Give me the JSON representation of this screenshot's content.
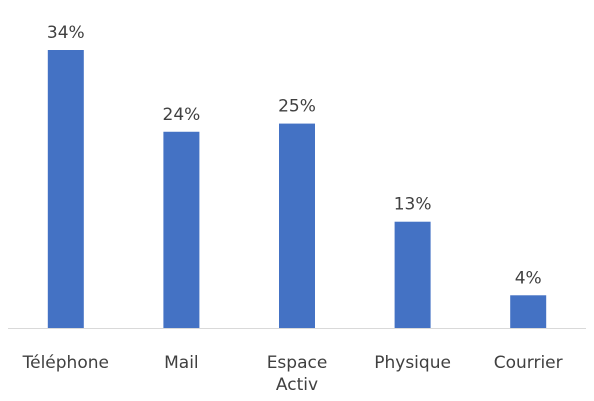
{
  "chart_data": {
    "type": "bar",
    "categories": [
      [
        "Téléphone"
      ],
      [
        "Mail"
      ],
      [
        "Espace",
        "Activ"
      ],
      [
        "Physique"
      ],
      [
        "Courrier"
      ]
    ],
    "values": [
      34,
      24,
      25,
      13,
      4
    ],
    "data_labels": [
      "34%",
      "24%",
      "25%",
      "13%",
      "4%"
    ],
    "unit": "%",
    "title": "",
    "xlabel": "",
    "ylabel": "",
    "ylim": [
      0,
      34
    ],
    "grid": false,
    "legend": "none",
    "bar_color": "#4472C4",
    "axis_color": "#D9D9D9",
    "text_color": "#404040"
  }
}
